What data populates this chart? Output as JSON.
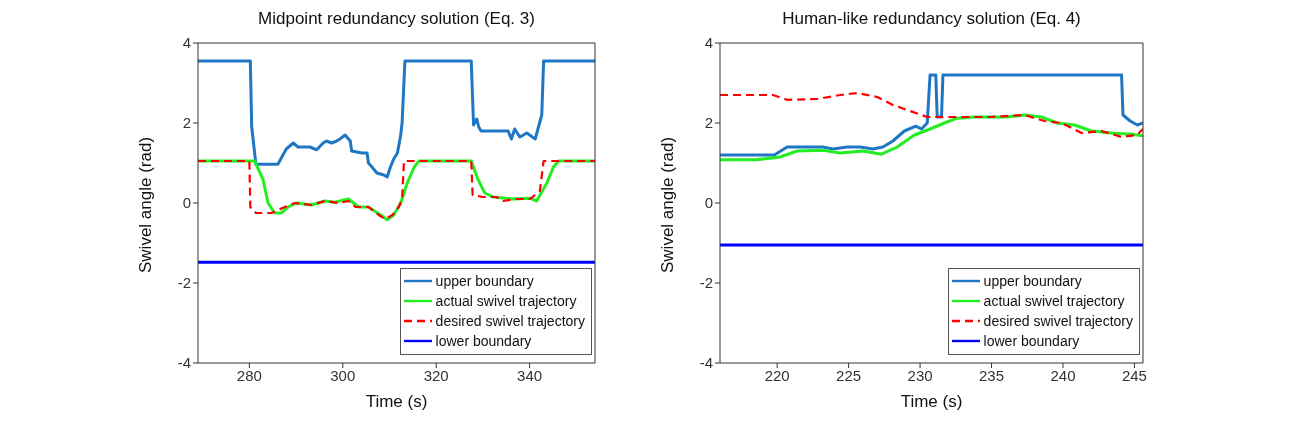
{
  "chart_data": [
    {
      "type": "line",
      "title": "Midpoint redundancy solution (Eq. 3)",
      "xlabel": "Time (s)",
      "ylabel": "Swivel angle (rad)",
      "xlim": [
        269,
        354
      ],
      "xticks": [
        280,
        300,
        320,
        340
      ],
      "ylim": [
        -4,
        4
      ],
      "yticks": [
        -4,
        -2,
        0,
        2,
        4
      ],
      "grid": false,
      "legend": "bottom right",
      "marker": "none",
      "series": [
        {
          "name": "upper boundary",
          "color": "#1f77c4",
          "line_style": "solid",
          "x": [
            269,
            280.2,
            280.5,
            281.4,
            286.1,
            287.9,
            289.4,
            290.4,
            293,
            294.4,
            295.8,
            296.5,
            297.6,
            298.7,
            299.4,
            300.5,
            301.6,
            301.9,
            304.1,
            305.2,
            305.5,
            306.6,
            307.3,
            308.8,
            309.5,
            310.2,
            310.9,
            311.7,
            312.4,
            312.7,
            313.3,
            327.5,
            328,
            328.7,
            329.1,
            329.6,
            331.4,
            335.4,
            336.1,
            336.8,
            337.9,
            339.4,
            341.2,
            341.9,
            342.6,
            343,
            354
          ],
          "values": [
            3.55,
            3.55,
            1.9,
            0.97,
            0.97,
            1.35,
            1.5,
            1.4,
            1.4,
            1.33,
            1.5,
            1.55,
            1.5,
            1.55,
            1.6,
            1.7,
            1.55,
            1.3,
            1.25,
            1.25,
            1.0,
            0.85,
            0.75,
            0.7,
            0.65,
            0.9,
            1.1,
            1.25,
            1.7,
            2.0,
            3.55,
            3.55,
            1.95,
            2.1,
            1.9,
            1.8,
            1.8,
            1.8,
            1.6,
            1.85,
            1.65,
            1.75,
            1.6,
            1.9,
            2.2,
            3.55,
            3.55
          ]
        },
        {
          "name": "actual swivel trajectory",
          "color": "#22ee22",
          "line_style": "solid",
          "x": [
            269,
            281.1,
            282.9,
            284,
            285.4,
            286.8,
            288.3,
            290.1,
            293.3,
            296.2,
            298.3,
            301.2,
            303.4,
            305.5,
            308.1,
            309.5,
            310.9,
            312.4,
            313.8,
            315.3,
            316.3,
            327.5,
            328.9,
            330.4,
            332.2,
            336.5,
            340.1,
            341.5,
            343.7,
            345.1,
            346.2,
            354
          ],
          "values": [
            1.05,
            1.05,
            0.6,
            0,
            -0.25,
            -0.25,
            -0.1,
            0,
            -0.05,
            0.05,
            0.02,
            0.1,
            -0.1,
            -0.1,
            -0.3,
            -0.42,
            -0.3,
            0,
            0.5,
            0.9,
            1.05,
            1.05,
            0.6,
            0.25,
            0.15,
            0.1,
            0.12,
            0.05,
            0.5,
            0.9,
            1.05,
            1.05
          ]
        },
        {
          "name": "desired swivel trajectory",
          "color": "#ff0000",
          "line_style": "dashed",
          "x": [
            269,
            280,
            280.2,
            281.4,
            284.7,
            287.6,
            289.7,
            293.3,
            296.2,
            299.1,
            301.2,
            302.7,
            305.5,
            307.7,
            309.1,
            310.6,
            312,
            312.7,
            313.1,
            327.5,
            327.8,
            330,
            332.9,
            334.3,
            337.2,
            340.1,
            342.2,
            343,
            354
          ],
          "values": [
            1.05,
            1.05,
            -0.1,
            -0.25,
            -0.25,
            -0.1,
            0,
            -0.05,
            0.05,
            0,
            0.05,
            -0.1,
            -0.1,
            -0.3,
            -0.4,
            -0.3,
            -0.1,
            0.1,
            1.05,
            1.05,
            0.2,
            0.15,
            0.15,
            0.05,
            0.1,
            0.1,
            0.3,
            1.05,
            1.05
          ]
        },
        {
          "name": "lower boundary",
          "color": "#0000ff",
          "line_style": "solid",
          "x": [
            269,
            354
          ],
          "values": [
            -1.48,
            -1.48
          ]
        }
      ]
    },
    {
      "type": "line",
      "title": "Human-like redundancy solution (Eq. 4)",
      "xlabel": "Time (s)",
      "ylabel": "Swivel angle (rad)",
      "xlim": [
        216,
        245.6
      ],
      "xticks": [
        220,
        225,
        230,
        235,
        240,
        245
      ],
      "ylim": [
        -4,
        4
      ],
      "yticks": [
        -4,
        -2,
        0,
        2,
        4
      ],
      "grid": false,
      "legend": "bottom right",
      "marker": "none",
      "series": [
        {
          "name": "upper boundary",
          "color": "#1f77c4",
          "line_style": "solid",
          "x": [
            216,
            219.8,
            220.7,
            221.6,
            223.2,
            223.9,
            224.9,
            225.8,
            226.7,
            227.4,
            228.1,
            228.9,
            229.7,
            230.1,
            230.5,
            230.7,
            231.1,
            231.2,
            231.5,
            231.6,
            244.1,
            244.2,
            244.7,
            245.2,
            245.6
          ],
          "values": [
            1.2,
            1.2,
            1.4,
            1.4,
            1.4,
            1.35,
            1.4,
            1.4,
            1.35,
            1.4,
            1.55,
            1.8,
            1.92,
            1.85,
            2.0,
            3.2,
            3.2,
            2.15,
            2.15,
            3.2,
            3.2,
            2.2,
            2.05,
            1.95,
            2.0
          ]
        },
        {
          "name": "actual swivel trajectory",
          "color": "#22ee22",
          "line_style": "solid",
          "x": [
            216,
            218.5,
            219.5,
            220.2,
            221.4,
            223.2,
            224.4,
            226,
            227.3,
            228.4,
            229.6,
            230.7,
            231.7,
            232.6,
            233.8,
            236.1,
            237.3,
            238.5,
            239.6,
            240.8,
            242,
            243.4,
            244.8,
            245.6
          ],
          "values": [
            1.08,
            1.08,
            1.12,
            1.15,
            1.3,
            1.32,
            1.25,
            1.3,
            1.22,
            1.4,
            1.7,
            1.85,
            2.0,
            2.12,
            2.15,
            2.15,
            2.2,
            2.15,
            2.0,
            1.95,
            1.8,
            1.75,
            1.72,
            1.68
          ]
        },
        {
          "name": "desired swivel trajectory",
          "color": "#ff0000",
          "line_style": "dashed",
          "x": [
            216,
            219.7,
            220.7,
            222.8,
            224.4,
            225.6,
            227,
            228.1,
            229.3,
            230.5,
            232.6,
            234.9,
            237.3,
            238.7,
            239.9,
            241.3,
            242.7,
            244.1,
            245.2,
            245.6
          ],
          "values": [
            2.7,
            2.7,
            2.58,
            2.6,
            2.7,
            2.75,
            2.65,
            2.45,
            2.3,
            2.15,
            2.15,
            2.15,
            2.2,
            2.05,
            2.0,
            1.75,
            1.8,
            1.65,
            1.7,
            1.85
          ]
        },
        {
          "name": "lower boundary",
          "color": "#0000ff",
          "line_style": "solid",
          "x": [
            216,
            245.6
          ],
          "values": [
            -1.05,
            -1.05
          ]
        }
      ]
    }
  ]
}
